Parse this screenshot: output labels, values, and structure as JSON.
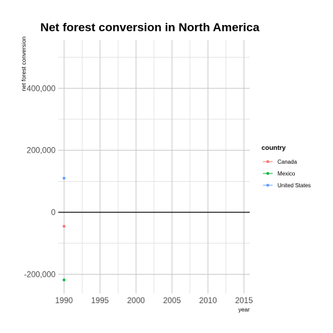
{
  "chart_data": {
    "type": "scatter",
    "title": "Net forest conversion in North America",
    "xlabel": "year",
    "ylabel": "net forest conversion",
    "xlim": [
      1989.2,
      2015.8
    ],
    "ylim": [
      -255000,
      555000
    ],
    "x_ticks": [
      1990,
      1995,
      2000,
      2005,
      2010,
      2015
    ],
    "x_tick_labels": [
      "1990",
      "1995",
      "2000",
      "2005",
      "2010",
      "2015"
    ],
    "y_ticks": [
      -200000,
      0,
      200000,
      400000
    ],
    "y_tick_labels": [
      "-200,000",
      "0",
      "200,000",
      "400,000"
    ],
    "grid": true,
    "zero_line": true,
    "legend": {
      "title": "country",
      "placement": "right"
    },
    "series": [
      {
        "name": "Canada",
        "color": "#f8766d",
        "x": [
          1990
        ],
        "y": [
          -45000
        ]
      },
      {
        "name": "Mexico",
        "color": "#00ba38",
        "x": [
          1990
        ],
        "y": [
          -218000
        ]
      },
      {
        "name": "United States",
        "color": "#619cff",
        "x": [
          1990
        ],
        "y": [
          110000
        ]
      }
    ]
  }
}
